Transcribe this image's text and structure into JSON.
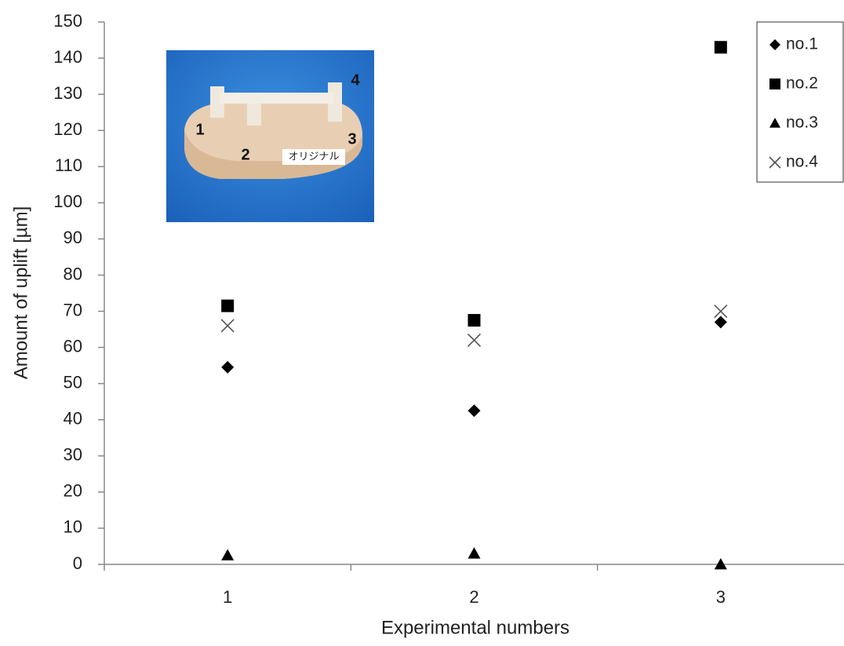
{
  "chart_data": {
    "type": "scatter",
    "x_label": "Experimental numbers",
    "y_label": "Amount of uplift [µm]",
    "categories": [
      "1",
      "2",
      "3"
    ],
    "series": [
      {
        "name": "no.1",
        "marker": "diamond",
        "color": "#000000",
        "values": [
          54.5,
          42.5,
          67
        ]
      },
      {
        "name": "no.2",
        "marker": "square",
        "color": "#000000",
        "values": [
          71.5,
          67.5,
          143
        ]
      },
      {
        "name": "no.3",
        "marker": "triangle",
        "color": "#000000",
        "values": [
          2.5,
          3,
          0
        ]
      },
      {
        "name": "no.4",
        "marker": "x",
        "color": "#555555",
        "values": [
          66,
          62,
          70
        ]
      }
    ],
    "ylim": [
      0,
      150
    ],
    "yticks": [
      0,
      10,
      20,
      30,
      40,
      50,
      60,
      70,
      80,
      90,
      100,
      110,
      120,
      130,
      140,
      150
    ],
    "grid": false,
    "legend": "top-right",
    "annotations": [
      "1",
      "2",
      "3",
      "4",
      "オリジナル"
    ]
  }
}
